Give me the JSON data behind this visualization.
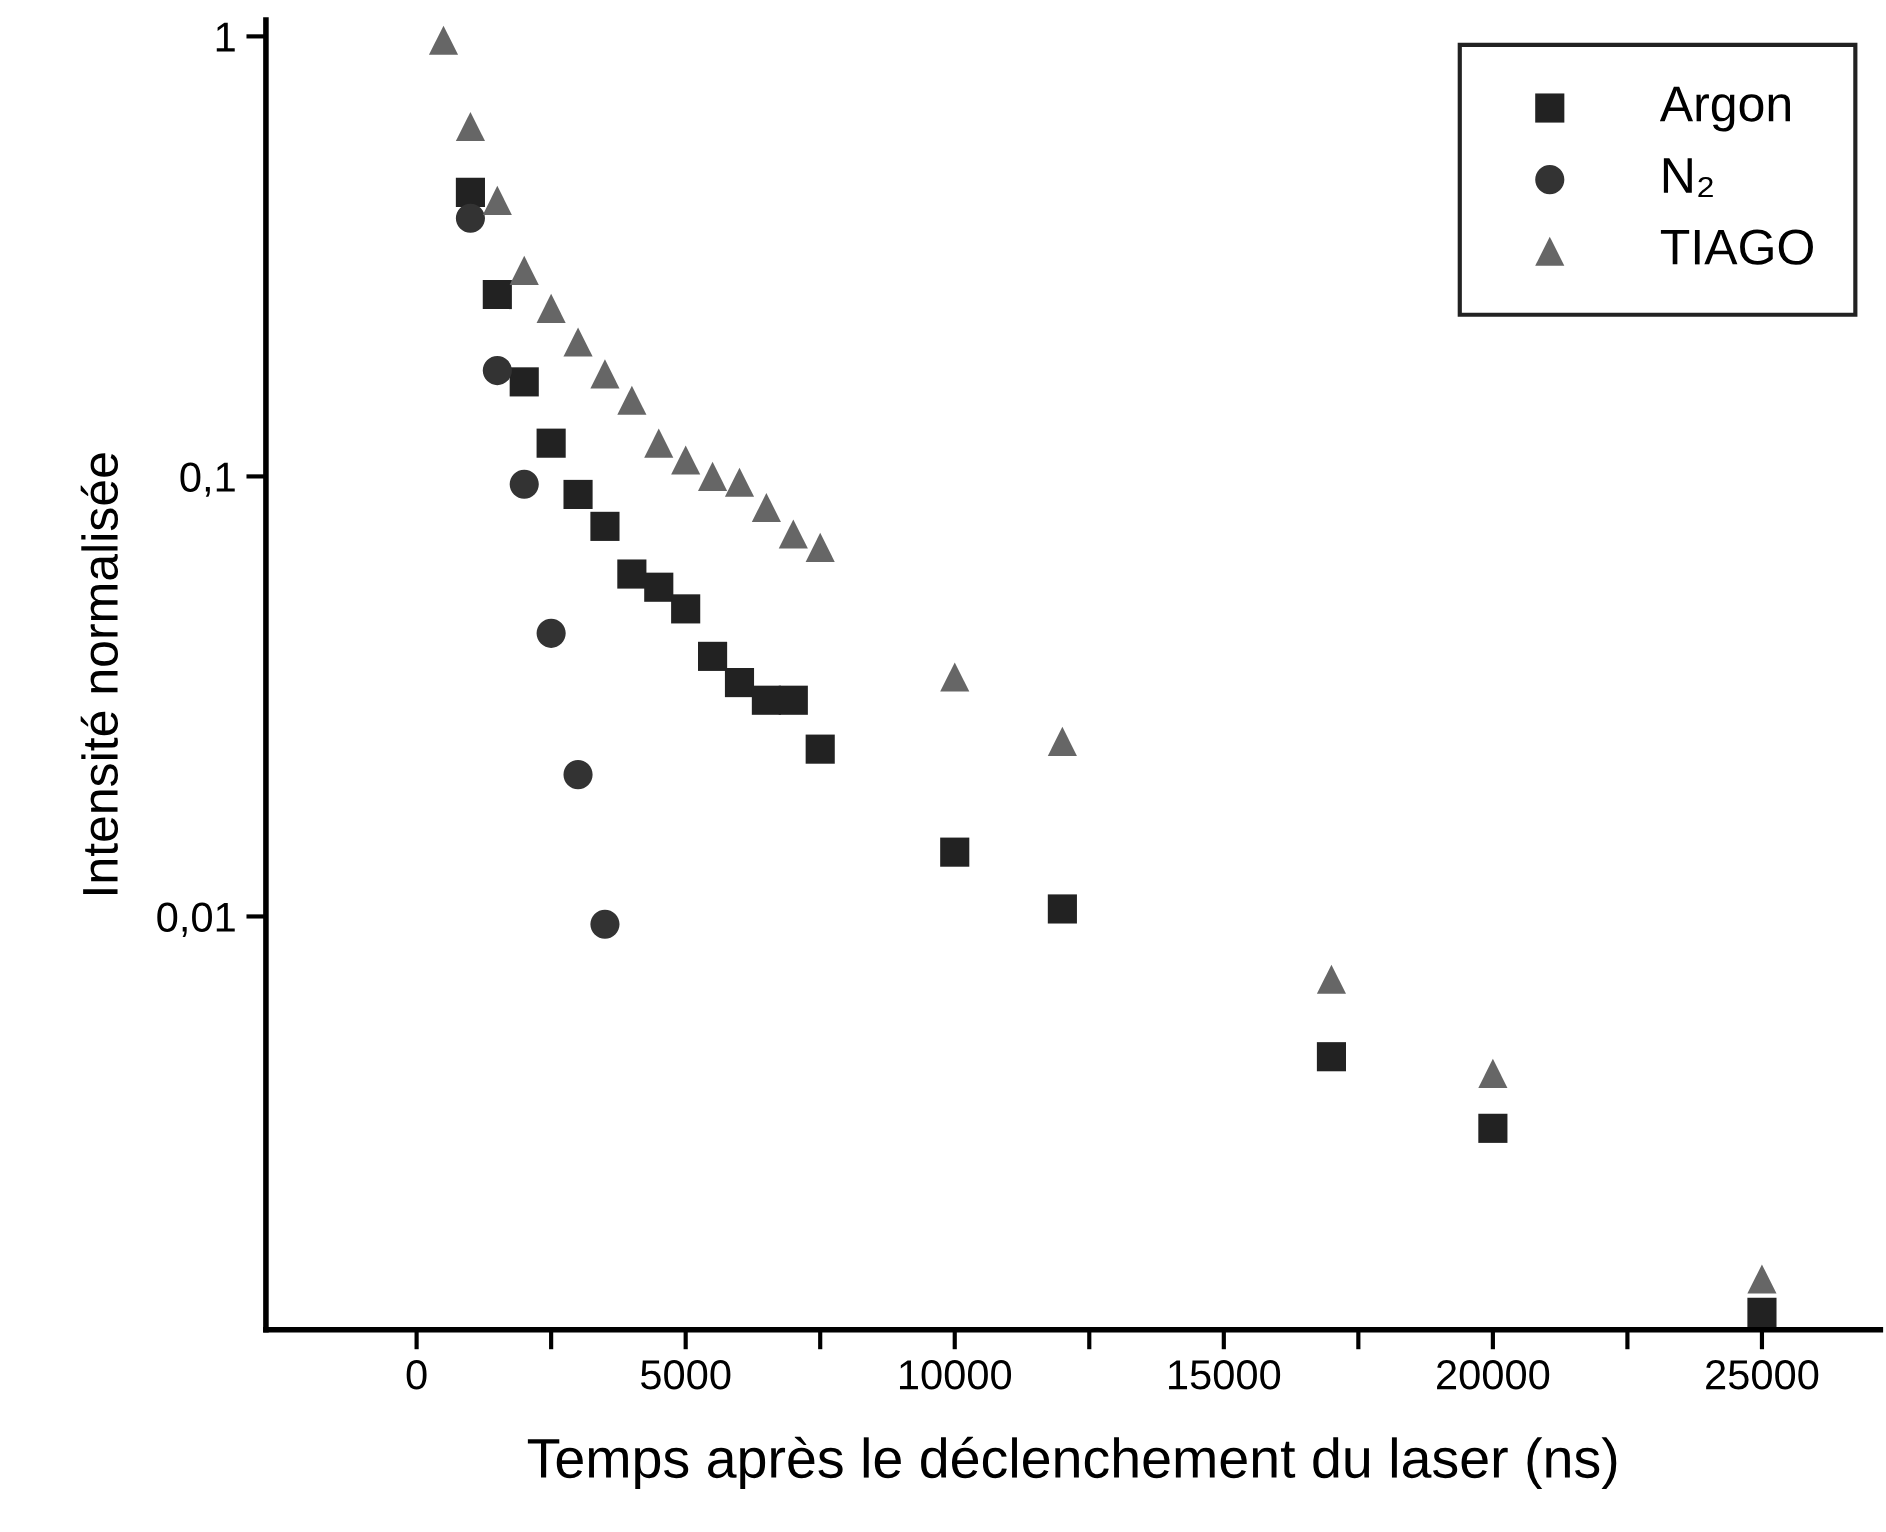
{
  "chart_data": {
    "type": "scatter",
    "xlabel": "Temps après le déclenchement du laser (ns)",
    "ylabel": "Intensité normalisée",
    "log": "y",
    "xlim": [
      -2800,
      27200
    ],
    "xticks": [
      0,
      {
        "value": 2500,
        "label": null
      },
      5000,
      {
        "value": 7500,
        "label": null
      },
      10000,
      {
        "value": 12500,
        "label": null
      },
      15000,
      {
        "value": 17500,
        "label": null
      },
      20000,
      {
        "value": 22500,
        "label": null
      },
      25000
    ],
    "ylim": [
      0.00115,
      1.09
    ],
    "yticks": [
      {
        "value": 0.01,
        "label": "0,01"
      },
      {
        "value": 0.1,
        "label": "0,1"
      },
      1
    ],
    "grid": false,
    "legend": "top right",
    "series": [
      {
        "name": "Argon",
        "color": "#222222",
        "marker": "square",
        "x": [
          1000,
          1500,
          2000,
          2500,
          3000,
          3500,
          4000,
          4500,
          5000,
          5500,
          6000,
          6500,
          7000,
          7500,
          10000,
          12000,
          17000,
          20000,
          25000
        ],
        "values": [
          0.442,
          0.259,
          0.164,
          0.119,
          0.091,
          0.077,
          0.06,
          0.056,
          0.05,
          0.039,
          0.034,
          0.031,
          0.031,
          0.024,
          0.014,
          0.0104,
          0.0048,
          0.0033,
          0.00126
        ]
      },
      {
        "name": "N₂",
        "color": "#333333",
        "marker": "circle",
        "x": [
          1000,
          1500,
          2000,
          2500,
          3000,
          3500
        ],
        "values": [
          0.386,
          0.174,
          0.096,
          0.044,
          0.021,
          0.0096
        ]
      },
      {
        "name": "TIAGO",
        "color": "#666666",
        "marker": "triangle",
        "x": [
          500,
          1000,
          1500,
          2000,
          2500,
          3000,
          3500,
          4000,
          4500,
          5000,
          5500,
          6000,
          6500,
          7000,
          7500,
          10000,
          12000,
          17000,
          20000,
          25000
        ],
        "values": [
          0.98,
          0.624,
          0.424,
          0.294,
          0.241,
          0.202,
          0.171,
          0.149,
          0.119,
          0.109,
          0.1,
          0.097,
          0.085,
          0.074,
          0.069,
          0.035,
          0.025,
          0.0072,
          0.0044,
          0.0015
        ]
      }
    ]
  }
}
